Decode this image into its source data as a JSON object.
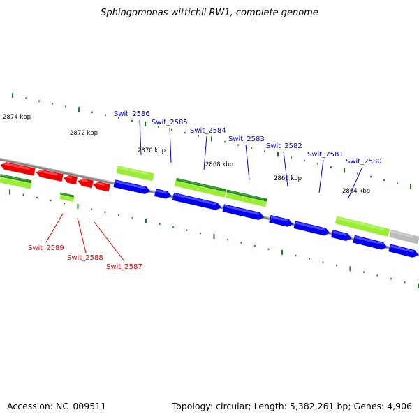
{
  "title": "Sphingomonas wittichii RW1, complete genome",
  "footer": {
    "accession": "Accession: NC_009511",
    "summary": "Topology: circular; Length: 5,382,261 bp; Genes: 4,906"
  },
  "colors": {
    "forward_cds": "#0000ee",
    "reverse_cds": "#ee0000",
    "forward_label": "#0000cc",
    "reverse_label": "#dd0000",
    "cog_light": "#99ee33",
    "cog_dark": "#228822",
    "cog_grey": "#bbbbbb",
    "backbone": "#888888",
    "ticks": "#1a7a1a"
  },
  "kbp_labels": [
    "2874 kbp",
    "2872 kbp",
    "2870 kbp",
    "2868 kbp",
    "2866 kbp",
    "2864 kbp"
  ],
  "gene_labels": {
    "forward": [
      "Swit_2586",
      "Swit_2585",
      "Swit_2584",
      "Swit_2583",
      "Swit_2582",
      "Swit_2581",
      "Swit_2580"
    ],
    "reverse": [
      "Swit_2589",
      "Swit_2588",
      "Swit_2587"
    ]
  }
}
